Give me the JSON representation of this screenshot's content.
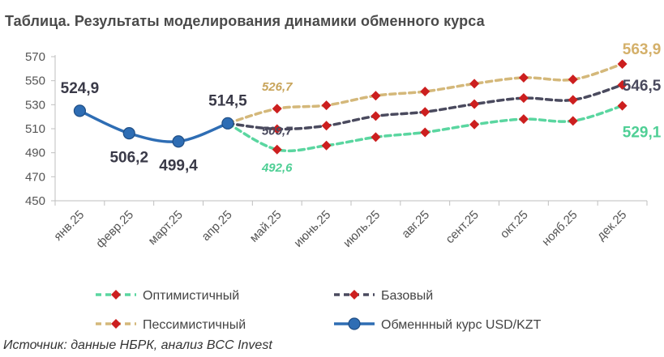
{
  "title": "Таблица. Результаты моделирования динамики обменного курса",
  "source": "Источник: данные НБРК, анализ BCC Invest",
  "colors": {
    "actual": "#2e6db4",
    "base": "#4a4a5e",
    "optimistic": "#5ad6a0",
    "pessimistic": "#d4b87a",
    "marker": "#cc1f1f",
    "axis": "#bfbfbf"
  },
  "chart_data": {
    "type": "line",
    "title": "Таблица. Результаты моделирования динамики обменного курса",
    "categories": [
      "янв.25",
      "февр.25",
      "март.25",
      "апр.25",
      "май.25",
      "июнь.25",
      "июль.25",
      "авг.25",
      "сент.25",
      "окт.25",
      "нояб.25",
      "дек.25"
    ],
    "ylim": [
      450,
      570
    ],
    "yticks": [
      450,
      470,
      490,
      510,
      530,
      550,
      570
    ],
    "grid": false,
    "legend_position": "bottom",
    "series": [
      {
        "name": "Оптимистичный",
        "key": "optimistic",
        "values": [
          null,
          null,
          null,
          514.5,
          492.6,
          496,
          503,
          507,
          513.5,
          518,
          516.5,
          529.1
        ]
      },
      {
        "name": "Базовый",
        "key": "base",
        "values": [
          null,
          null,
          null,
          514.5,
          509.7,
          512.5,
          520.5,
          524,
          530.5,
          535.5,
          534,
          546.5
        ]
      },
      {
        "name": "Пессимистичный",
        "key": "pessimistic",
        "values": [
          null,
          null,
          null,
          514.5,
          526.7,
          529.5,
          537.5,
          541,
          547.5,
          552.5,
          551,
          563.9
        ]
      },
      {
        "name": "Обменнный курс USD/KZT",
        "key": "actual",
        "values": [
          524.9,
          506.2,
          499.4,
          514.5,
          null,
          null,
          null,
          null,
          null,
          null,
          null,
          null
        ]
      }
    ],
    "annotations": [
      {
        "text": "524,9",
        "series": "actual",
        "index": 0
      },
      {
        "text": "506,2",
        "series": "actual",
        "index": 1
      },
      {
        "text": "499,4",
        "series": "actual",
        "index": 2
      },
      {
        "text": "514,5",
        "series": "actual",
        "index": 3
      },
      {
        "text": "526,7",
        "series": "pessimistic",
        "index": 4
      },
      {
        "text": "509,7",
        "series": "base",
        "index": 4
      },
      {
        "text": "492,6",
        "series": "optimistic",
        "index": 4
      },
      {
        "text": "563,9",
        "series": "pessimistic",
        "index": 11
      },
      {
        "text": "546,5",
        "series": "base",
        "index": 11
      },
      {
        "text": "529,1",
        "series": "optimistic",
        "index": 11
      }
    ]
  }
}
